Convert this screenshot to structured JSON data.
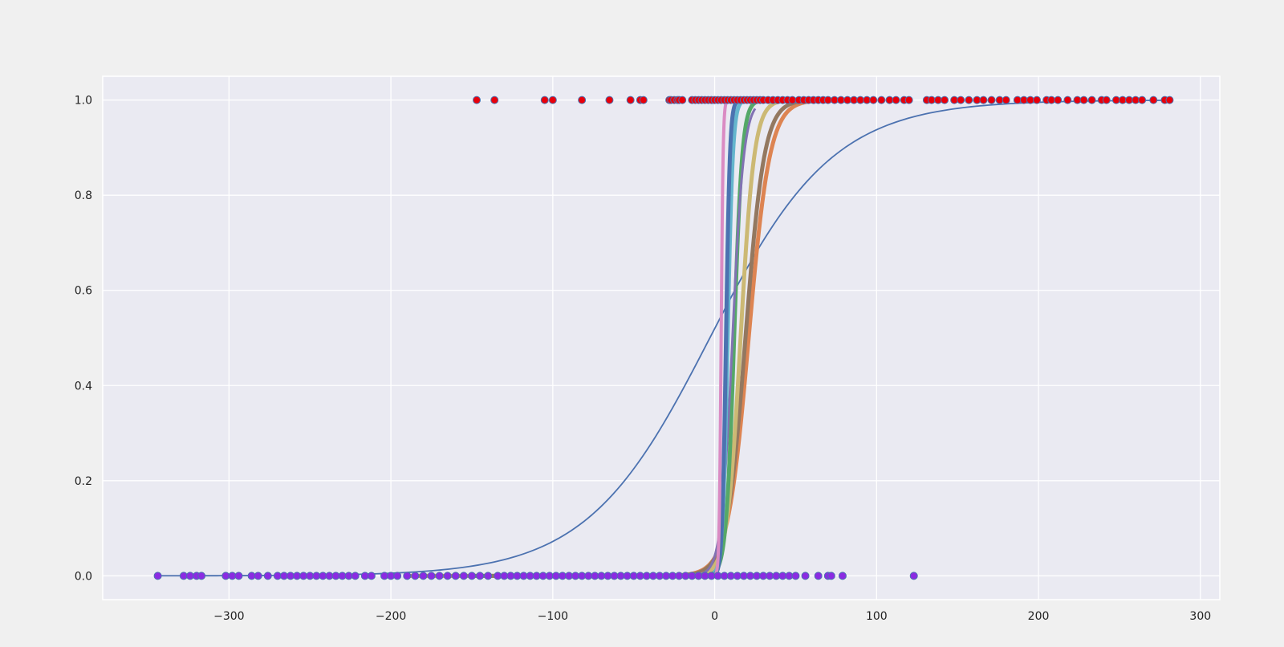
{
  "chart_data": {
    "type": "scatter",
    "title": "",
    "xlabel": "",
    "ylabel": "",
    "xlim": [
      -378,
      312
    ],
    "ylim": [
      -0.05,
      1.05
    ],
    "xticks": [
      -300,
      -200,
      -100,
      0,
      100,
      200,
      300
    ],
    "xtick_labels": [
      "−300",
      "−200",
      "−100",
      "0",
      "100",
      "200",
      "300"
    ],
    "yticks": [
      0.0,
      0.2,
      0.4,
      0.6,
      0.8,
      1.0
    ],
    "ytick_labels": [
      "0.0",
      "0.2",
      "0.4",
      "0.6",
      "0.8",
      "1.0"
    ],
    "grid": true,
    "legend": "none",
    "colors": {
      "figure_bg": "#f0f0f0",
      "axes_bg": "#eaeaf2",
      "grid": "#ffffff",
      "positive_point": "#e8000b",
      "negative_point": "#8b2be2",
      "point_edge": "#4c72b0"
    },
    "points_y1": [
      -147,
      -136,
      -105,
      -100,
      -82,
      -65,
      -52,
      -46,
      -44,
      -28,
      -27,
      -25,
      -23,
      -22,
      -20,
      -14,
      -12,
      -10,
      -8,
      -6,
      -4,
      -2,
      0,
      2,
      4,
      6,
      8,
      10,
      12,
      14,
      16,
      18,
      20,
      22,
      24,
      26,
      28,
      30,
      33,
      36,
      39,
      42,
      45,
      48,
      52,
      55,
      58,
      61,
      64,
      67,
      70,
      74,
      78,
      82,
      86,
      90,
      94,
      98,
      103,
      108,
      112,
      117,
      120,
      131,
      134,
      138,
      142,
      148,
      152,
      157,
      162,
      166,
      171,
      176,
      180,
      187,
      191,
      195,
      199,
      205,
      208,
      212,
      218,
      224,
      228,
      233,
      239,
      242,
      248,
      252,
      256,
      260,
      264,
      271,
      278,
      281
    ],
    "points_y0": [
      -344,
      -328,
      -324,
      -320,
      -317,
      -302,
      -298,
      -294,
      -286,
      -282,
      -276,
      -270,
      -266,
      -262,
      -258,
      -254,
      -250,
      -246,
      -242,
      -238,
      -234,
      -230,
      -226,
      -222,
      -216,
      -212,
      -204,
      -200,
      -196,
      -190,
      -185,
      -180,
      -175,
      -170,
      -165,
      -160,
      -155,
      -150,
      -145,
      -140,
      -134,
      -130,
      -126,
      -122,
      -118,
      -114,
      -110,
      -106,
      -102,
      -98,
      -94,
      -90,
      -86,
      -82,
      -78,
      -74,
      -70,
      -66,
      -62,
      -58,
      -54,
      -50,
      -46,
      -42,
      -38,
      -34,
      -30,
      -26,
      -22,
      -18,
      -14,
      -10,
      -6,
      -2,
      2,
      6,
      10,
      14,
      18,
      22,
      26,
      30,
      34,
      38,
      42,
      46,
      50,
      56,
      64,
      70,
      72,
      79,
      123
    ],
    "series": [
      {
        "kind": "sigmoid",
        "center": -3,
        "scale": 38,
        "x_range": [
          -344,
          281
        ],
        "color": "#4c72b0",
        "width": 1.8
      },
      {
        "kind": "sigmoid",
        "center": 21,
        "scale": 6.5,
        "x_range": [
          -190,
          72
        ],
        "color": "#dd8452",
        "width": 5
      },
      {
        "kind": "sigmoid",
        "center": 19,
        "scale": 5.8,
        "x_range": [
          -150,
          70
        ],
        "color": "#937860",
        "width": 5
      },
      {
        "kind": "sigmoid",
        "center": 16,
        "scale": 4.2,
        "x_range": [
          -120,
          45
        ],
        "color": "#ccb974",
        "width": 5
      },
      {
        "kind": "sigmoid",
        "center": 12,
        "scale": 2.5,
        "x_range": [
          -80,
          32
        ],
        "color": "#55a868",
        "width": 5
      },
      {
        "kind": "sigmoid",
        "center": 11,
        "scale": 3.5,
        "x_range": [
          -60,
          25
        ],
        "color": "#8172b3",
        "width": 3
      },
      {
        "kind": "sigmoid",
        "center": 8,
        "scale": 1.6,
        "x_range": [
          -60,
          35
        ],
        "color": "#64b5cd",
        "width": 5
      },
      {
        "kind": "sigmoid",
        "center": 7,
        "scale": 1.2,
        "x_range": [
          -60,
          30
        ],
        "color": "#4c72b0",
        "width": 5
      },
      {
        "kind": "sigmoid",
        "center": 4,
        "scale": 0.6,
        "x_range": [
          -8,
          9
        ],
        "color": "#da8bc3",
        "width": 4
      }
    ]
  }
}
